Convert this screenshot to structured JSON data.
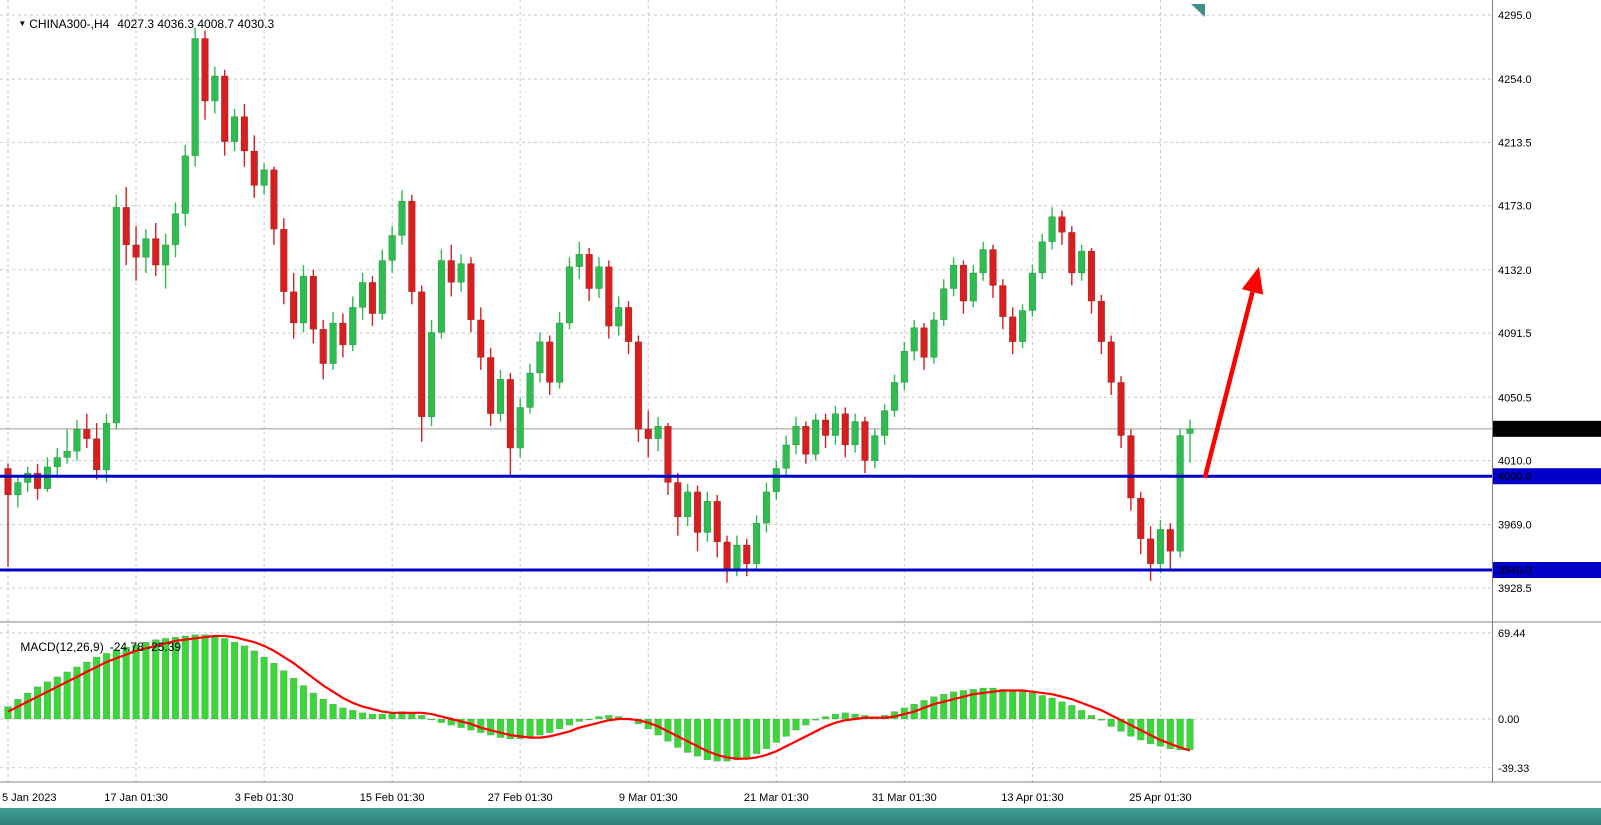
{
  "header": {
    "symbol_label": "CHINA300-,H4",
    "ohlc": "4027.3 4036.3 4008.7 4030.3"
  },
  "indicator": {
    "label": "MACD(12,26,9)",
    "values": "-24.78 -25.39"
  },
  "colors": {
    "background": "#FFFFFF",
    "grid": "#C9C9C9",
    "candle_up": "#2DBE4F",
    "candle_down": "#D81E1E",
    "level_line": "#0000C8",
    "macd_bar": "#3CD63C",
    "macd_signal": "#FF0000",
    "current_badge_bg": "#000000",
    "arrow": "#FF0000"
  },
  "chart_data": {
    "type": "candlestick",
    "symbol": "CHINA300-",
    "timeframe": "H4",
    "title": "CHINA300-,H4 4027.3 4036.3 4008.7 4030.3",
    "current_bar_ohlc": [
      4027.3,
      4036.3,
      4008.7,
      4030.3
    ],
    "current_price": 4030.3,
    "current_price_label": "4030.3",
    "x_axis": {
      "tick_labels": [
        "5 Jan 2023",
        "17 Jan 01:30",
        "3 Feb 01:30",
        "15 Feb 01:30",
        "27 Feb 01:30",
        "9 Mar 01:30",
        "21 Mar 01:30",
        "31 Mar 01:30",
        "13 Apr 01:30",
        "25 Apr 01:30"
      ],
      "tick_candle_indices": [
        0,
        13,
        26,
        39,
        52,
        65,
        78,
        91,
        104,
        117
      ]
    },
    "y_axis": {
      "tick_labels": [
        "4295.0",
        "4254.0",
        "4213.5",
        "4173.0",
        "4132.0",
        "4091.5",
        "4050.5",
        "4010.0",
        "3969.0",
        "3928.5"
      ],
      "tick_values": [
        4295.0,
        4254.0,
        4213.5,
        4173.0,
        4132.0,
        4091.5,
        4050.5,
        4010.0,
        3969.0,
        3928.5
      ]
    },
    "support_resistance_lines": [
      {
        "value": 4000.0,
        "label": "4000.0"
      },
      {
        "value": 3940.0,
        "label": "3940.0"
      }
    ],
    "trend_arrow": {
      "start_index": 121.5,
      "start_price": 3999,
      "end_index": 127,
      "end_price": 4134
    },
    "candles": [
      [
        4005,
        4008,
        3942,
        3988
      ],
      [
        3988,
        4000,
        3980,
        3996
      ],
      [
        3996,
        4006,
        3990,
        4002
      ],
      [
        4002,
        4008,
        3985,
        3992
      ],
      [
        3992,
        4012,
        3990,
        4006
      ],
      [
        4006,
        4018,
        4000,
        4012
      ],
      [
        4012,
        4030,
        4008,
        4016
      ],
      [
        4016,
        4036,
        4010,
        4030
      ],
      [
        4030,
        4040,
        4018,
        4024
      ],
      [
        4024,
        4034,
        3998,
        4004
      ],
      [
        4004,
        4040,
        3996,
        4034
      ],
      [
        4034,
        4180,
        4030,
        4172
      ],
      [
        4172,
        4185,
        4135,
        4148
      ],
      [
        4148,
        4160,
        4125,
        4140
      ],
      [
        4140,
        4158,
        4130,
        4152
      ],
      [
        4152,
        4162,
        4128,
        4135
      ],
      [
        4135,
        4155,
        4120,
        4148
      ],
      [
        4148,
        4175,
        4140,
        4168
      ],
      [
        4168,
        4212,
        4160,
        4205
      ],
      [
        4205,
        4287,
        4198,
        4280
      ],
      [
        4280,
        4285,
        4228,
        4240
      ],
      [
        4240,
        4262,
        4232,
        4256
      ],
      [
        4256,
        4260,
        4205,
        4214
      ],
      [
        4214,
        4235,
        4208,
        4230
      ],
      [
        4230,
        4238,
        4198,
        4208
      ],
      [
        4208,
        4218,
        4178,
        4186
      ],
      [
        4186,
        4200,
        4180,
        4196
      ],
      [
        4196,
        4198,
        4148,
        4158
      ],
      [
        4158,
        4165,
        4110,
        4118
      ],
      [
        4118,
        4130,
        4088,
        4098
      ],
      [
        4098,
        4135,
        4092,
        4128
      ],
      [
        4128,
        4132,
        4085,
        4094
      ],
      [
        4094,
        4100,
        4062,
        4072
      ],
      [
        4072,
        4105,
        4068,
        4098
      ],
      [
        4098,
        4104,
        4076,
        4084
      ],
      [
        4084,
        4115,
        4080,
        4108
      ],
      [
        4108,
        4130,
        4100,
        4124
      ],
      [
        4124,
        4128,
        4096,
        4104
      ],
      [
        4104,
        4145,
        4100,
        4138
      ],
      [
        4138,
        4160,
        4130,
        4154
      ],
      [
        4154,
        4183,
        4148,
        4176
      ],
      [
        4176,
        4180,
        4110,
        4118
      ],
      [
        4118,
        4122,
        4022,
        4038
      ],
      [
        4038,
        4100,
        4032,
        4092
      ],
      [
        4092,
        4145,
        4088,
        4138
      ],
      [
        4138,
        4148,
        4115,
        4124
      ],
      [
        4124,
        4142,
        4118,
        4136
      ],
      [
        4136,
        4140,
        4092,
        4100
      ],
      [
        4100,
        4108,
        4068,
        4076
      ],
      [
        4076,
        4082,
        4032,
        4040
      ],
      [
        4040,
        4068,
        4035,
        4062
      ],
      [
        4062,
        4066,
        4000,
        4018
      ],
      [
        4018,
        4050,
        4012,
        4044
      ],
      [
        4044,
        4072,
        4040,
        4066
      ],
      [
        4066,
        4092,
        4060,
        4086
      ],
      [
        4086,
        4090,
        4052,
        4060
      ],
      [
        4060,
        4105,
        4056,
        4098
      ],
      [
        4098,
        4140,
        4094,
        4134
      ],
      [
        4134,
        4150,
        4126,
        4142
      ],
      [
        4142,
        4146,
        4112,
        4120
      ],
      [
        4120,
        4140,
        4114,
        4134
      ],
      [
        4134,
        4138,
        4088,
        4096
      ],
      [
        4096,
        4115,
        4090,
        4108
      ],
      [
        4108,
        4112,
        4078,
        4086
      ],
      [
        4086,
        4090,
        4022,
        4030
      ],
      [
        4030,
        4042,
        4012,
        4024
      ],
      [
        4024,
        4038,
        4016,
        4032
      ],
      [
        4032,
        4034,
        3988,
        3996
      ],
      [
        3996,
        4002,
        3962,
        3974
      ],
      [
        3974,
        3995,
        3968,
        3990
      ],
      [
        3990,
        3994,
        3952,
        3964
      ],
      [
        3964,
        3990,
        3958,
        3984
      ],
      [
        3984,
        3988,
        3948,
        3958
      ],
      [
        3958,
        3962,
        3932,
        3940
      ],
      [
        3940,
        3962,
        3936,
        3956
      ],
      [
        3956,
        3960,
        3936,
        3944
      ],
      [
        3944,
        3975,
        3940,
        3970
      ],
      [
        3970,
        3996,
        3964,
        3990
      ],
      [
        3990,
        4010,
        3985,
        4005
      ],
      [
        4005,
        4026,
        4000,
        4020
      ],
      [
        4020,
        4038,
        4014,
        4032
      ],
      [
        4032,
        4035,
        4008,
        4014
      ],
      [
        4014,
        4040,
        4010,
        4036
      ],
      [
        4036,
        4040,
        4018,
        4026
      ],
      [
        4026,
        4045,
        4020,
        4040
      ],
      [
        4040,
        4044,
        4012,
        4020
      ],
      [
        4020,
        4040,
        4015,
        4035
      ],
      [
        4035,
        4038,
        4002,
        4010
      ],
      [
        4010,
        4030,
        4005,
        4026
      ],
      [
        4026,
        4046,
        4020,
        4042
      ],
      [
        4042,
        4065,
        4038,
        4060
      ],
      [
        4060,
        4086,
        4055,
        4080
      ],
      [
        4080,
        4100,
        4074,
        4095
      ],
      [
        4095,
        4098,
        4068,
        4076
      ],
      [
        4076,
        4105,
        4072,
        4100
      ],
      [
        4100,
        4126,
        4096,
        4120
      ],
      [
        4120,
        4140,
        4115,
        4135
      ],
      [
        4135,
        4138,
        4104,
        4112
      ],
      [
        4112,
        4135,
        4108,
        4130
      ],
      [
        4130,
        4150,
        4125,
        4145
      ],
      [
        4145,
        4148,
        4114,
        4122
      ],
      [
        4122,
        4126,
        4094,
        4102
      ],
      [
        4102,
        4108,
        4078,
        4086
      ],
      [
        4086,
        4110,
        4082,
        4106
      ],
      [
        4106,
        4135,
        4102,
        4130
      ],
      [
        4130,
        4155,
        4126,
        4150
      ],
      [
        4150,
        4172,
        4145,
        4166
      ],
      [
        4166,
        4170,
        4148,
        4156
      ],
      [
        4156,
        4160,
        4122,
        4130
      ],
      [
        4130,
        4148,
        4125,
        4144
      ],
      [
        4144,
        4146,
        4104,
        4112
      ],
      [
        4112,
        4116,
        4078,
        4086
      ],
      [
        4086,
        4090,
        4052,
        4060
      ],
      [
        4060,
        4064,
        4018,
        4026
      ],
      [
        4026,
        4030,
        3978,
        3986
      ],
      [
        3986,
        3990,
        3950,
        3960
      ],
      [
        3960,
        3968,
        3933,
        3944
      ],
      [
        3944,
        3972,
        3938,
        3966
      ],
      [
        3966,
        3970,
        3940,
        3952
      ],
      [
        3952,
        4030,
        3948,
        4026
      ],
      [
        4027.3,
        4036.3,
        4008.7,
        4030.3
      ]
    ],
    "macd": {
      "label": "MACD(12,26,9)",
      "current_values": [
        -24.78,
        -25.39
      ],
      "y_axis": {
        "tick_labels": [
          "69.44",
          "0.00",
          "-39.33"
        ],
        "tick_values": [
          69.44,
          0,
          -39.33
        ]
      },
      "histogram": [
        10,
        16,
        21,
        26,
        30,
        34,
        38,
        42,
        46,
        50,
        53,
        56,
        58,
        60,
        62,
        64,
        65,
        66,
        67,
        68,
        68,
        67,
        65,
        62,
        59,
        55,
        50,
        45,
        39,
        33,
        27,
        21,
        16,
        12,
        9,
        7,
        5,
        4,
        4,
        5,
        6,
        5,
        3,
        0,
        -3,
        -5,
        -7,
        -9,
        -11,
        -13,
        -15,
        -16,
        -16,
        -15,
        -13,
        -11,
        -8,
        -5,
        -2,
        0,
        2,
        3,
        2,
        0,
        -4,
        -8,
        -13,
        -18,
        -23,
        -27,
        -30,
        -33,
        -34,
        -34,
        -33,
        -31,
        -28,
        -24,
        -19,
        -14,
        -9,
        -5,
        -1,
        2,
        4,
        5,
        4,
        3,
        2,
        3,
        6,
        9,
        12,
        15,
        18,
        20,
        22,
        23,
        24,
        25,
        25,
        24,
        23,
        22,
        21,
        19,
        17,
        14,
        11,
        7,
        3,
        -1,
        -6,
        -10,
        -14,
        -17,
        -20,
        -22,
        -24,
        -25,
        -24.78
      ],
      "signal": [
        6,
        10,
        14,
        18,
        22,
        26,
        30,
        34,
        38,
        42,
        46,
        49,
        52,
        55,
        57,
        59,
        61,
        63,
        64,
        65,
        66,
        67,
        67,
        66,
        64,
        62,
        59,
        55,
        50,
        45,
        39,
        33,
        27,
        22,
        17,
        13,
        10,
        8,
        6,
        5,
        5,
        5,
        5,
        4,
        2,
        0,
        -2,
        -4,
        -7,
        -9,
        -11,
        -13,
        -14,
        -15,
        -15,
        -14,
        -12,
        -10,
        -7,
        -5,
        -3,
        -1,
        0,
        0,
        -1,
        -3,
        -6,
        -10,
        -14,
        -18,
        -22,
        -26,
        -29,
        -31,
        -32,
        -32,
        -31,
        -29,
        -26,
        -22,
        -18,
        -14,
        -10,
        -6,
        -3,
        -1,
        0,
        1,
        1,
        1,
        2,
        4,
        6,
        9,
        12,
        14,
        16,
        18,
        20,
        21,
        22,
        23,
        23,
        23,
        22,
        21,
        20,
        18,
        16,
        13,
        10,
        7,
        3,
        -1,
        -5,
        -9,
        -13,
        -17,
        -20,
        -23,
        -25.39
      ]
    }
  }
}
